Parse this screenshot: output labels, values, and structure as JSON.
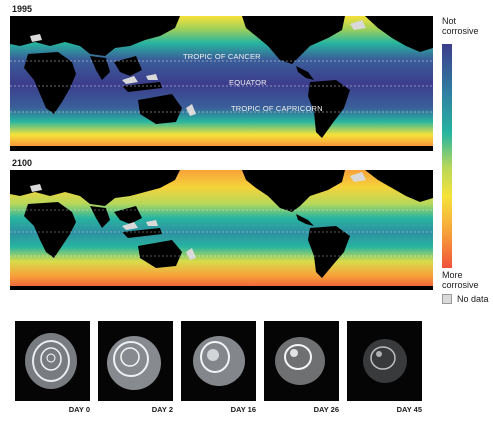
{
  "maps": [
    {
      "year": "1995",
      "labels": {
        "tropic_cancer": "TROPIC OF CANCER",
        "equator": "EQUATOR",
        "tropic_capricorn": "TROPIC OF CAPRICORN"
      }
    },
    {
      "year": "2100"
    }
  ],
  "legend": {
    "top": "Not corrosive",
    "bottom": "More corrosive",
    "no_data": "No data",
    "gradient": [
      "#3c3d8c",
      "#2f7fa2",
      "#27b5a0",
      "#b8d85a",
      "#f6e23a",
      "#f7a23a",
      "#f0523a"
    ]
  },
  "shell_photos": [
    {
      "day": "DAY 0",
      "dissolution": 0.0
    },
    {
      "day": "DAY 2",
      "dissolution": 0.2
    },
    {
      "day": "DAY 16",
      "dissolution": 0.45
    },
    {
      "day": "DAY 26",
      "dissolution": 0.7
    },
    {
      "day": "DAY 45",
      "dissolution": 0.9
    }
  ]
}
